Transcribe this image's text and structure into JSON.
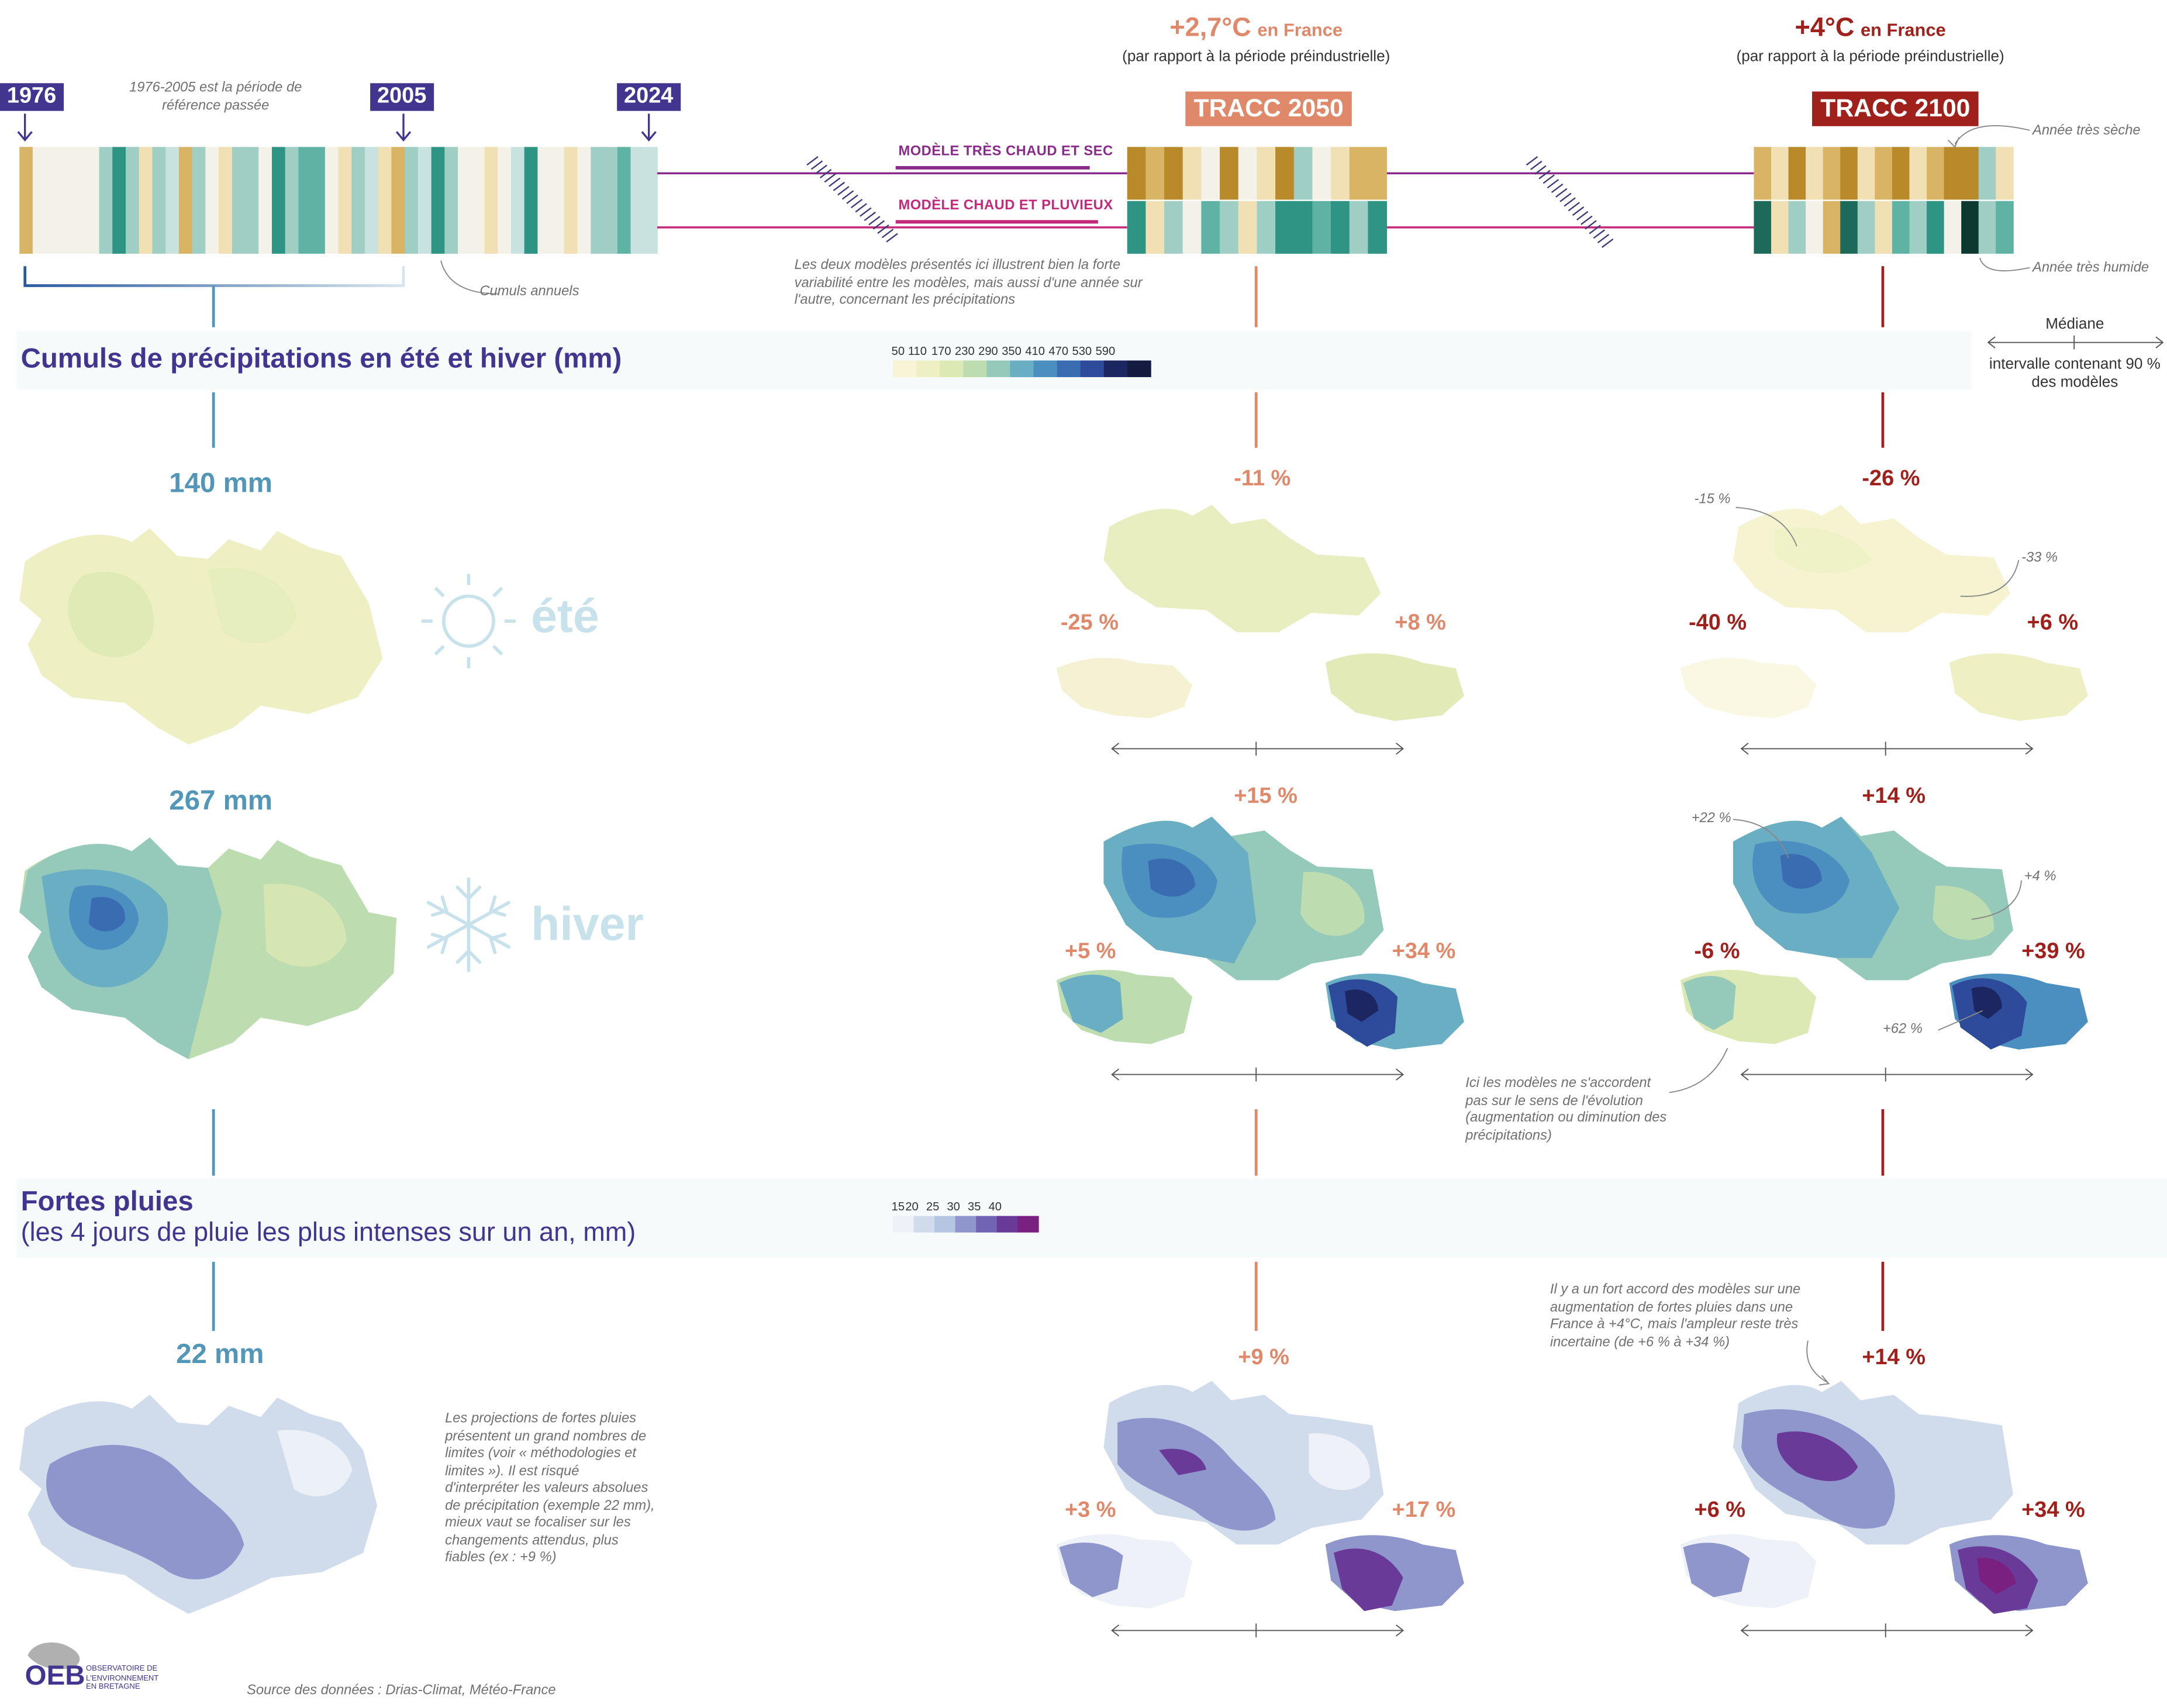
{
  "timeline": {
    "years": [
      "1976",
      "2005",
      "2024"
    ],
    "reference_note": "1976-2005 est la période de référence passée",
    "annual_note": "Cumuls annuels",
    "model_dry": "MODÈLE TRÈS CHAUD ET SEC",
    "model_wet": "MODÈLE CHAUD ET PLUVIEUX",
    "models_note": "Les deux modèles présentés ici illustrent bien la forte variabilité entre les modèles, mais aussi d'une année sur l'autre, concernant les précipitations",
    "dry_year_note": "Année très sèche",
    "wet_year_note": "Année très humide"
  },
  "scenarios": [
    {
      "temp": "+2,7°C",
      "scope": "en France",
      "sub": "(par rapport à la période préindustrielle)",
      "label": "TRACC 2050",
      "color": "#e0896a"
    },
    {
      "temp": "+4°C",
      "scope": "en France",
      "sub": "(par rapport à la période préindustrielle)",
      "label": "TRACC 2100",
      "color": "#a0201c"
    }
  ],
  "precip_section": {
    "title": "Cumuls de précipitations en été et hiver (mm)",
    "legend_values": [
      "50",
      "110",
      "170",
      "230",
      "290",
      "350",
      "410",
      "470",
      "530",
      "590"
    ],
    "legend_colors": [
      "#f8f5d6",
      "#eef0c4",
      "#dce9b4",
      "#bddcb0",
      "#95c9ba",
      "#6aaec4",
      "#4a8fc0",
      "#3a6cb2",
      "#2e4a9a",
      "#1c2660",
      "#141a40"
    ],
    "median_label": "Médiane",
    "interval_label": "intervalle contenant 90 % des modèles",
    "summer": {
      "label": "été",
      "ref": "140 mm",
      "s2050": {
        "median": "-11 %",
        "low": "-25 %",
        "high": "+8 %"
      },
      "s2100": {
        "median": "-26 %",
        "low": "-40 %",
        "high": "+6 %",
        "west": "-15 %",
        "east": "-33 %"
      }
    },
    "winter": {
      "label": "hiver",
      "ref": "267 mm",
      "s2050": {
        "median": "+15 %",
        "low": "+5 %",
        "high": "+34 %"
      },
      "s2100": {
        "median": "+14 %",
        "low": "-6 %",
        "high": "+39 %",
        "west": "+22 %",
        "east": "+4 %",
        "south": "+62 %"
      },
      "disagree_note": "Ici les modèles ne s'accordent pas sur le sens de l'évolution (augmentation ou diminution des précipitations)"
    }
  },
  "heavy_section": {
    "title": "Fortes pluies",
    "subtitle": "(les 4 jours de pluie les plus intenses sur un an, mm)",
    "legend_values": [
      "15",
      "20",
      "25",
      "30",
      "35",
      "40"
    ],
    "legend_colors": [
      "#eef2f8",
      "#d0dcec",
      "#b4c6e2",
      "#8e96cc",
      "#7264b4",
      "#6a3a98",
      "#7a2080"
    ],
    "ref": "22 mm",
    "projection_note": "Les projections de fortes pluies présentent un grand nombres de limites (voir « méthodologies et limites »). Il est risqué d'interpréter les valeurs absolues de précipitation (exemple 22 mm), mieux vaut se focaliser sur les changements attendus, plus fiables (ex : +9 %)",
    "agreement_note": "Il y a un fort accord des modèles sur une augmentation de fortes pluies dans une France à +4°C, mais l'ampleur reste très incertaine (de +6 % à +34 %)",
    "s2050": {
      "median": "+9 %",
      "low": "+3 %",
      "high": "+17 %"
    },
    "s2100": {
      "median": "+14 %",
      "low": "+6 %",
      "high": "+34 %"
    }
  },
  "footer": {
    "logo": "OEB",
    "logo_text": "OBSERVATOIRE DE L'ENVIRONNEMENT EN BRETAGNE",
    "source": "Source des données : Drias-Climat, Météo-France"
  }
}
